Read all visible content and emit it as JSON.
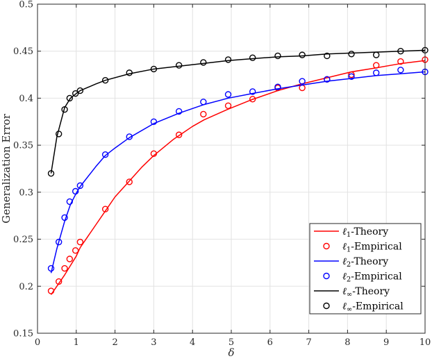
{
  "chart_data": {
    "type": "line",
    "xlabel": "δ",
    "ylabel": "Generalization Error",
    "xlim": [
      0,
      10
    ],
    "ylim": [
      0.15,
      0.5
    ],
    "xticks": [
      0,
      1,
      2,
      3,
      4,
      5,
      6,
      7,
      8,
      9,
      10
    ],
    "yticks": [
      0.15,
      0.2,
      0.25,
      0.3,
      0.35,
      0.4,
      0.45,
      0.5
    ],
    "xtick_labels": [
      "0",
      "1",
      "2",
      "3",
      "4",
      "5",
      "6",
      "7",
      "8",
      "9",
      "10"
    ],
    "ytick_labels": [
      "0.15",
      "0.2",
      "0.25",
      "0.3",
      "0.35",
      "0.4",
      "0.45",
      "0.5"
    ],
    "grid": true,
    "legend_position": "bottom-right",
    "series": [
      {
        "name": "ℓ1-Theory",
        "label_base": "ℓ",
        "label_sub": "1",
        "label_rest": "-Theory",
        "kind": "line",
        "color": "#ff0000",
        "x": [
          0.35,
          0.5,
          0.7,
          0.85,
          1.0,
          1.1,
          1.5,
          1.75,
          2.0,
          2.35,
          2.7,
          3.0,
          3.5,
          4.0,
          4.3,
          4.9,
          5.5,
          6.2,
          6.8,
          7.5,
          8.1,
          8.7,
          9.4,
          10.0
        ],
        "y": [
          0.191,
          0.2,
          0.212,
          0.222,
          0.232,
          0.241,
          0.265,
          0.28,
          0.295,
          0.311,
          0.327,
          0.339,
          0.356,
          0.37,
          0.377,
          0.388,
          0.398,
          0.408,
          0.415,
          0.422,
          0.428,
          0.432,
          0.437,
          0.44
        ]
      },
      {
        "name": "ℓ1-Empirical",
        "label_base": "ℓ",
        "label_sub": "1",
        "label_rest": "-Empirical",
        "kind": "marker",
        "color": "#ff0000",
        "x": [
          0.35,
          0.55,
          0.7,
          0.83,
          0.98,
          1.1,
          1.75,
          2.37,
          3.0,
          3.65,
          4.28,
          4.92,
          5.55,
          6.2,
          6.83,
          7.47,
          8.1,
          8.74,
          9.37,
          10.0
        ],
        "y": [
          0.195,
          0.205,
          0.219,
          0.229,
          0.238,
          0.247,
          0.282,
          0.311,
          0.341,
          0.361,
          0.383,
          0.392,
          0.399,
          0.411,
          0.411,
          0.42,
          0.425,
          0.435,
          0.439,
          0.441
        ]
      },
      {
        "name": "ℓ2-Theory",
        "label_base": "ℓ",
        "label_sub": "2",
        "label_rest": "-Theory",
        "kind": "line",
        "color": "#0000ff",
        "x": [
          0.35,
          0.5,
          0.7,
          0.85,
          1.0,
          1.1,
          1.5,
          1.75,
          2.0,
          2.37,
          3.0,
          3.65,
          4.28,
          4.92,
          5.55,
          6.2,
          6.83,
          7.47,
          8.1,
          8.74,
          9.37,
          10.0
        ],
        "y": [
          0.214,
          0.24,
          0.269,
          0.287,
          0.299,
          0.306,
          0.327,
          0.339,
          0.347,
          0.358,
          0.373,
          0.384,
          0.393,
          0.4,
          0.405,
          0.41,
          0.414,
          0.418,
          0.421,
          0.424,
          0.426,
          0.428
        ]
      },
      {
        "name": "ℓ2-Empirical",
        "label_base": "ℓ",
        "label_sub": "2",
        "label_rest": "-Empirical",
        "kind": "marker",
        "color": "#0000ff",
        "x": [
          0.35,
          0.55,
          0.7,
          0.83,
          0.98,
          1.1,
          1.75,
          2.37,
          3.0,
          3.65,
          4.28,
          4.92,
          5.55,
          6.2,
          6.83,
          7.47,
          8.1,
          8.74,
          9.37,
          10.0
        ],
        "y": [
          0.219,
          0.247,
          0.273,
          0.29,
          0.301,
          0.307,
          0.34,
          0.359,
          0.375,
          0.386,
          0.396,
          0.404,
          0.407,
          0.412,
          0.418,
          0.42,
          0.423,
          0.427,
          0.43,
          0.428
        ]
      },
      {
        "name": "ℓ∞-Theory",
        "label_base": "ℓ",
        "label_sub": "∞",
        "label_rest": "-Theory",
        "kind": "line",
        "color": "#000000",
        "x": [
          0.35,
          0.5,
          0.7,
          0.85,
          1.0,
          1.1,
          1.5,
          1.75,
          2.37,
          3.0,
          3.65,
          4.28,
          4.92,
          5.55,
          6.2,
          6.83,
          7.47,
          8.1,
          8.74,
          9.37,
          10.0
        ],
        "y": [
          0.32,
          0.359,
          0.39,
          0.4,
          0.405,
          0.408,
          0.415,
          0.419,
          0.426,
          0.431,
          0.434,
          0.437,
          0.44,
          0.442,
          0.444,
          0.445,
          0.447,
          0.448,
          0.449,
          0.45,
          0.451
        ]
      },
      {
        "name": "ℓ∞-Empirical",
        "label_base": "ℓ",
        "label_sub": "∞",
        "label_rest": "-Empirical",
        "kind": "marker",
        "color": "#000000",
        "x": [
          0.35,
          0.55,
          0.7,
          0.83,
          0.98,
          1.1,
          1.75,
          2.37,
          3.0,
          3.65,
          4.28,
          4.92,
          5.55,
          6.2,
          6.83,
          7.47,
          8.1,
          8.74,
          9.37,
          10.0
        ],
        "y": [
          0.32,
          0.362,
          0.388,
          0.4,
          0.405,
          0.408,
          0.419,
          0.427,
          0.431,
          0.435,
          0.438,
          0.441,
          0.443,
          0.445,
          0.446,
          0.445,
          0.447,
          0.446,
          0.45,
          0.451
        ]
      }
    ]
  }
}
